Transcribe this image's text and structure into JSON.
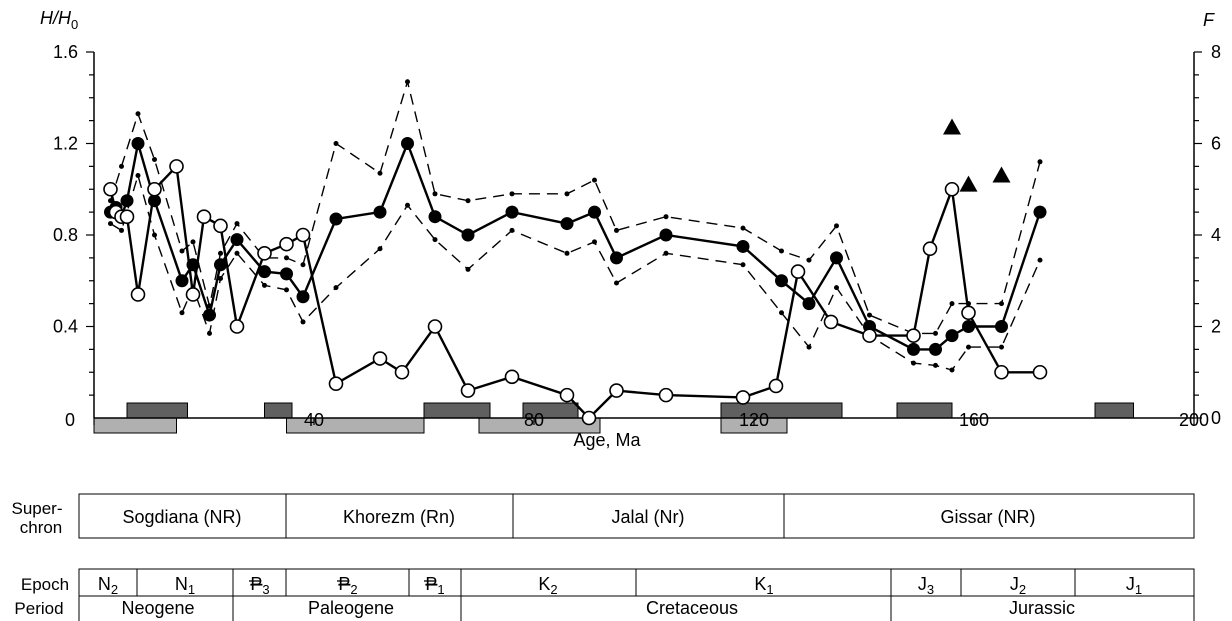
{
  "chart_data": {
    "type": "line",
    "xlabel": "Age, Ma",
    "ylabel_left": "H/H0",
    "ylabel_right": "F",
    "xlim": [
      0,
      200
    ],
    "ylim_left": [
      0,
      1.6
    ],
    "ylim_right": [
      0,
      8
    ],
    "x_ticks": [
      "0",
      "40",
      "80",
      "120",
      "160",
      "200"
    ],
    "y_left_ticks": [
      "0.4",
      "0.8",
      "1.2",
      "1.6"
    ],
    "y_right_ticks": [
      "0",
      "2",
      "4",
      "6",
      "8"
    ],
    "grid": false,
    "series": [
      {
        "axis": "left",
        "style": "solid line, filled circles",
        "points": [
          [
            3,
            0.9
          ],
          [
            4,
            0.92
          ],
          [
            5,
            0.88
          ],
          [
            6,
            0.95
          ],
          [
            8,
            1.2
          ],
          [
            11,
            0.95
          ],
          [
            16,
            0.6
          ],
          [
            18,
            0.67
          ],
          [
            21,
            0.45
          ],
          [
            23,
            0.67
          ],
          [
            26,
            0.78
          ],
          [
            31,
            0.64
          ],
          [
            35,
            0.63
          ],
          [
            38,
            0.53
          ],
          [
            44,
            0.87
          ],
          [
            52,
            0.9
          ],
          [
            57,
            1.2
          ],
          [
            62,
            0.88
          ],
          [
            68,
            0.8
          ],
          [
            76,
            0.9
          ],
          [
            86,
            0.85
          ],
          [
            91,
            0.9
          ],
          [
            95,
            0.7
          ],
          [
            104,
            0.8
          ],
          [
            118,
            0.75
          ],
          [
            125,
            0.6
          ],
          [
            130,
            0.5
          ],
          [
            135,
            0.7
          ],
          [
            141,
            0.4
          ],
          [
            149,
            0.3
          ],
          [
            153,
            0.3
          ],
          [
            156,
            0.36
          ],
          [
            159,
            0.4
          ],
          [
            165,
            0.4
          ],
          [
            172,
            0.9
          ]
        ]
      },
      {
        "axis": "right",
        "style": "solid line, open circles",
        "points": [
          [
            3,
            5
          ],
          [
            4,
            4.5
          ],
          [
            5,
            4.4
          ],
          [
            6,
            4.4
          ],
          [
            8,
            2.7
          ],
          [
            11,
            5
          ],
          [
            15,
            5.5
          ],
          [
            18,
            2.7
          ],
          [
            20,
            4.4
          ],
          [
            23,
            4.2
          ],
          [
            26,
            2
          ],
          [
            31,
            3.6
          ],
          [
            35,
            3.8
          ],
          [
            38,
            4
          ],
          [
            44,
            0.75
          ],
          [
            52,
            1.3
          ],
          [
            56,
            1
          ],
          [
            62,
            2
          ],
          [
            68,
            0.6
          ],
          [
            76,
            0.9
          ],
          [
            86,
            0.5
          ],
          [
            90,
            0
          ],
          [
            95,
            0.6
          ],
          [
            104,
            0.5
          ],
          [
            118,
            0.45
          ],
          [
            124,
            0.7
          ],
          [
            128,
            3.2
          ],
          [
            134,
            2.1
          ],
          [
            141,
            1.8
          ],
          [
            149,
            1.8
          ],
          [
            152,
            3.7
          ],
          [
            156,
            5
          ],
          [
            159,
            2.3
          ],
          [
            165,
            1
          ],
          [
            172,
            1
          ]
        ]
      },
      {
        "axis": "left",
        "style": "dashed upper bound",
        "points": [
          [
            3,
            0.95
          ],
          [
            5,
            1.1
          ],
          [
            8,
            1.33
          ],
          [
            11,
            1.13
          ],
          [
            16,
            0.73
          ],
          [
            18,
            0.77
          ],
          [
            21,
            0.49
          ],
          [
            23,
            0.72
          ],
          [
            26,
            0.85
          ],
          [
            31,
            0.7
          ],
          [
            35,
            0.7
          ],
          [
            38,
            0.67
          ],
          [
            44,
            1.2
          ],
          [
            52,
            1.07
          ],
          [
            57,
            1.47
          ],
          [
            62,
            0.98
          ],
          [
            68,
            0.95
          ],
          [
            76,
            0.98
          ],
          [
            86,
            0.98
          ],
          [
            91,
            1.04
          ],
          [
            95,
            0.82
          ],
          [
            104,
            0.88
          ],
          [
            118,
            0.83
          ],
          [
            125,
            0.73
          ],
          [
            130,
            0.69
          ],
          [
            135,
            0.84
          ],
          [
            141,
            0.45
          ],
          [
            149,
            0.37
          ],
          [
            153,
            0.37
          ],
          [
            156,
            0.5
          ],
          [
            159,
            0.5
          ],
          [
            165,
            0.5
          ],
          [
            172,
            1.12
          ]
        ]
      },
      {
        "axis": "left",
        "style": "dashed lower bound",
        "points": [
          [
            3,
            0.85
          ],
          [
            5,
            0.82
          ],
          [
            8,
            1.06
          ],
          [
            11,
            0.8
          ],
          [
            16,
            0.46
          ],
          [
            18,
            0.57
          ],
          [
            21,
            0.37
          ],
          [
            23,
            0.61
          ],
          [
            26,
            0.72
          ],
          [
            31,
            0.58
          ],
          [
            35,
            0.56
          ],
          [
            38,
            0.42
          ],
          [
            44,
            0.57
          ],
          [
            52,
            0.74
          ],
          [
            57,
            0.93
          ],
          [
            62,
            0.78
          ],
          [
            68,
            0.65
          ],
          [
            76,
            0.82
          ],
          [
            86,
            0.72
          ],
          [
            91,
            0.77
          ],
          [
            95,
            0.59
          ],
          [
            104,
            0.72
          ],
          [
            118,
            0.67
          ],
          [
            125,
            0.46
          ],
          [
            130,
            0.31
          ],
          [
            135,
            0.57
          ],
          [
            141,
            0.36
          ],
          [
            149,
            0.24
          ],
          [
            153,
            0.23
          ],
          [
            156,
            0.21
          ],
          [
            159,
            0.31
          ],
          [
            165,
            0.31
          ],
          [
            172,
            0.69
          ]
        ]
      },
      {
        "axis": "left",
        "style": "filled triangles",
        "points": [
          [
            156,
            1.27
          ],
          [
            159,
            1.02
          ],
          [
            165,
            1.06
          ]
        ]
      }
    ],
    "polarity_bars_dark": [
      [
        6,
        17
      ],
      [
        31,
        36
      ],
      [
        60,
        72
      ],
      [
        78,
        88
      ],
      [
        114,
        136
      ],
      [
        146,
        156
      ],
      [
        182,
        189
      ]
    ],
    "polarity_bars_light": [
      [
        0,
        15
      ],
      [
        35,
        60
      ],
      [
        70,
        92
      ],
      [
        114,
        126
      ]
    ]
  },
  "superchrons": {
    "header_top": "Super-",
    "header_bottom": "chron",
    "items": [
      "Sogdiana (NR)",
      "Khorezm (Rn)",
      "Jalal (Nr)",
      "Gissar (NR)"
    ]
  },
  "epochs": {
    "header": "Epoch",
    "items": [
      {
        "main": "N",
        "sub": "2"
      },
      {
        "main": "N",
        "sub": "1"
      },
      {
        "main": "P",
        "sub": "3",
        "barred": true
      },
      {
        "main": "P",
        "sub": "2",
        "barred": true
      },
      {
        "main": "P",
        "sub": "1",
        "barred": true
      },
      {
        "main": "K",
        "sub": "2"
      },
      {
        "main": "K",
        "sub": "1"
      },
      {
        "main": "J",
        "sub": "3"
      },
      {
        "main": "J",
        "sub": "2"
      },
      {
        "main": "J",
        "sub": "1"
      }
    ]
  },
  "periods": {
    "header": "Period",
    "items": [
      "Neogene",
      "Paleogene",
      "Cretaceous",
      "Jurassic"
    ]
  }
}
